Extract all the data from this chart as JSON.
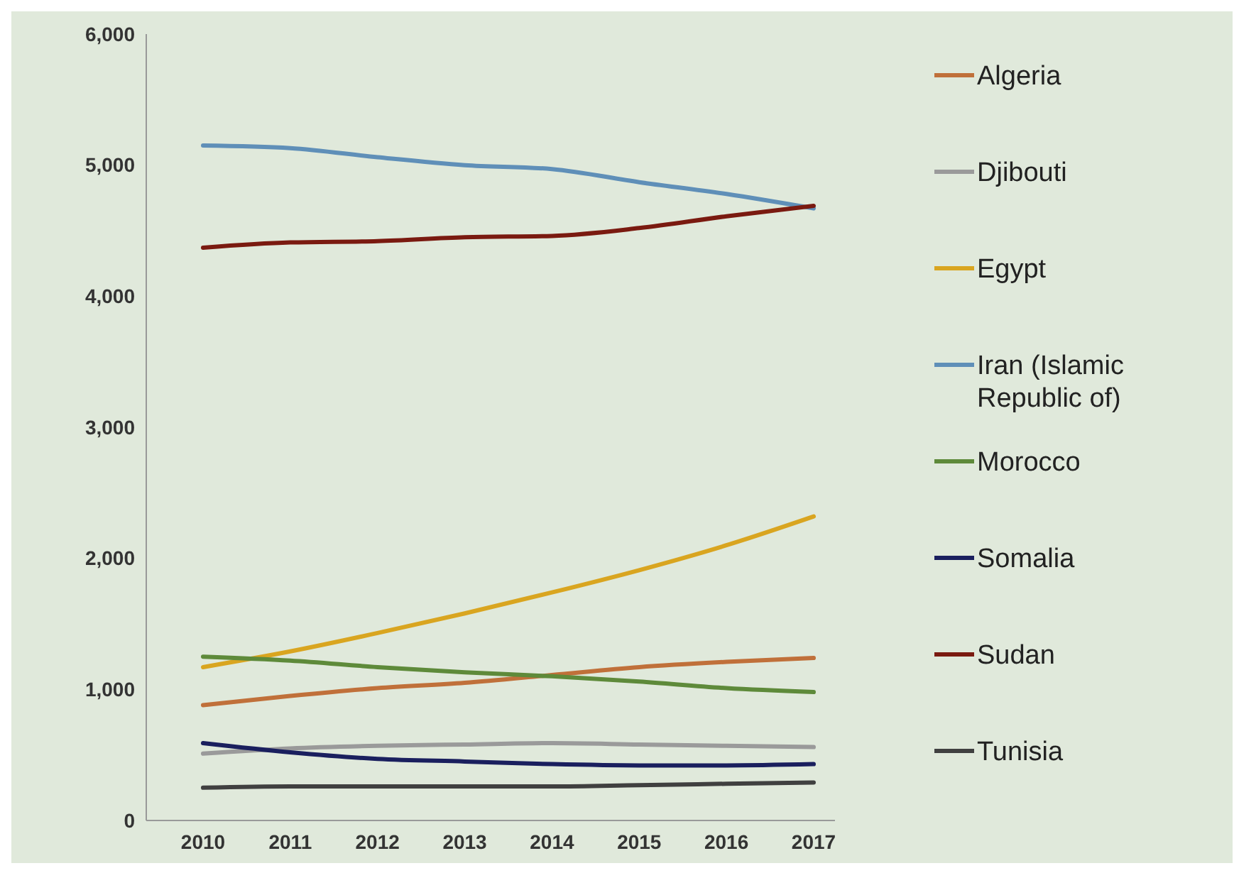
{
  "chart_data": {
    "type": "line",
    "categories": [
      "2010",
      "2011",
      "2012",
      "2013",
      "2014",
      "2015",
      "2016",
      "2017"
    ],
    "ylim": [
      0,
      6000
    ],
    "yticks": [
      {
        "value": 0,
        "label": "0"
      },
      {
        "value": 1000,
        "label": "1,000"
      },
      {
        "value": 2000,
        "label": "2,000"
      },
      {
        "value": 3000,
        "label": "3,000"
      },
      {
        "value": 4000,
        "label": "4,000"
      },
      {
        "value": 5000,
        "label": "5,000"
      },
      {
        "value": 6000,
        "label": "6,000"
      }
    ],
    "grid": false,
    "legend": "right",
    "marker": "none",
    "line_style": "solid",
    "series": [
      {
        "name": "Algeria",
        "color": "#c0703a",
        "values": [
          880,
          950,
          1010,
          1050,
          1110,
          1170,
          1210,
          1240
        ]
      },
      {
        "name": "Djibouti",
        "color": "#9a9a9a",
        "values": [
          510,
          550,
          570,
          580,
          590,
          580,
          570,
          560
        ]
      },
      {
        "name": "Egypt",
        "color": "#d9a520",
        "values": [
          1170,
          1290,
          1430,
          1580,
          1740,
          1910,
          2100,
          2320
        ]
      },
      {
        "name": "Iran (Islamic Republic of)",
        "color": "#5f8fb8",
        "values": [
          5150,
          5130,
          5060,
          5000,
          4970,
          4870,
          4780,
          4670
        ]
      },
      {
        "name": "Morocco",
        "color": "#5e8a3a",
        "values": [
          1250,
          1220,
          1170,
          1130,
          1100,
          1060,
          1010,
          980
        ]
      },
      {
        "name": "Somalia",
        "color": "#1a1f5e",
        "values": [
          590,
          520,
          470,
          450,
          430,
          420,
          420,
          430
        ]
      },
      {
        "name": "Sudan",
        "color": "#7a1a10",
        "values": [
          4370,
          4410,
          4420,
          4450,
          4460,
          4520,
          4610,
          4690
        ]
      },
      {
        "name": "Tunisia",
        "color": "#404040",
        "values": [
          250,
          260,
          260,
          260,
          260,
          270,
          280,
          290
        ]
      }
    ]
  }
}
